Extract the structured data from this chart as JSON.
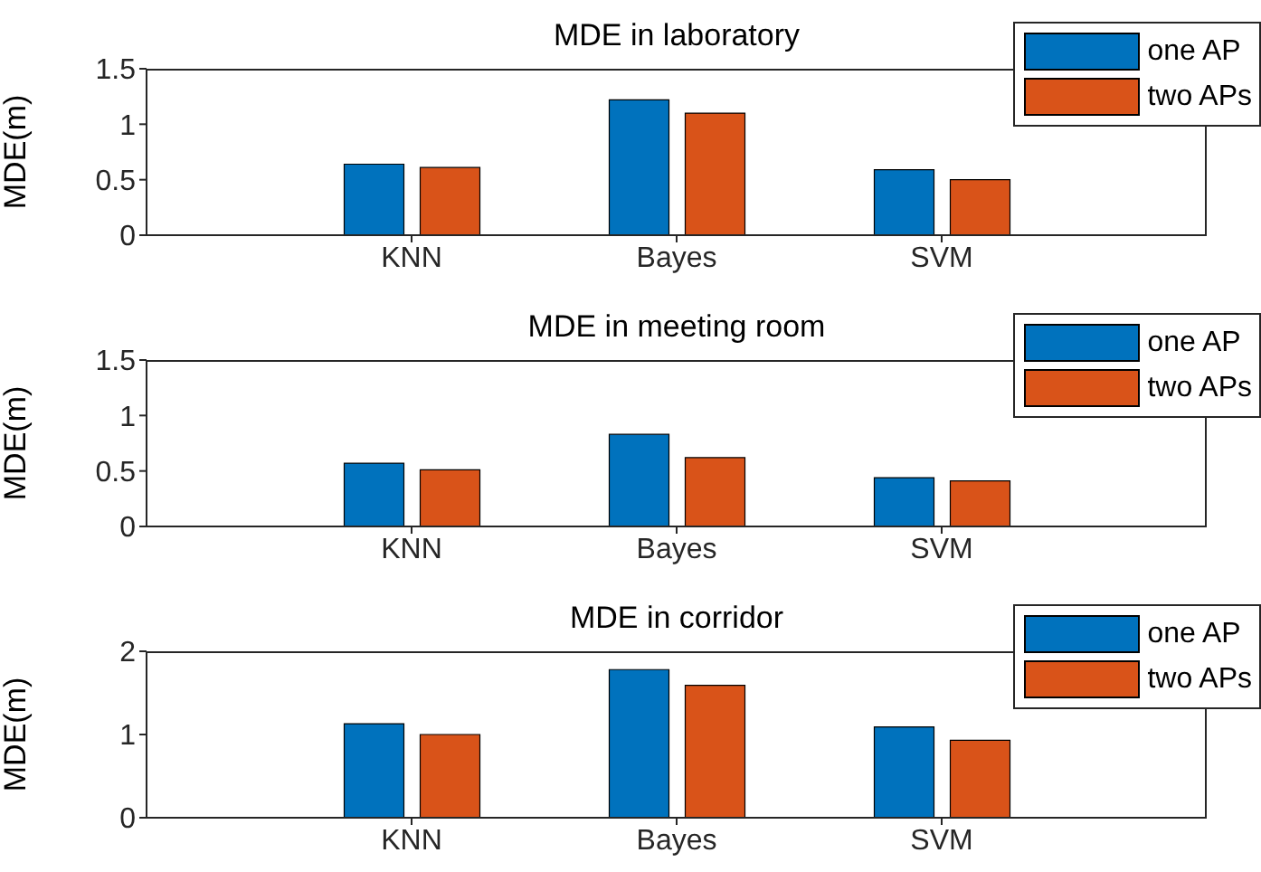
{
  "chart_data": [
    {
      "type": "bar",
      "title": "MDE in laboratory",
      "ylabel": "MDE(m)",
      "categories": [
        "KNN",
        "Bayes",
        "SVM"
      ],
      "ylim": [
        0,
        1.5
      ],
      "yticks": [
        0,
        0.5,
        1,
        1.5
      ],
      "legend": "right",
      "grid": false,
      "series": [
        {
          "name": "one AP",
          "color": "#0072bd",
          "values": [
            0.64,
            1.22,
            0.59
          ]
        },
        {
          "name": "two APs",
          "color": "#d95319",
          "values": [
            0.61,
            1.1,
            0.5
          ]
        }
      ]
    },
    {
      "type": "bar",
      "title": "MDE in meeting room",
      "ylabel": "MDE(m)",
      "categories": [
        "KNN",
        "Bayes",
        "SVM"
      ],
      "ylim": [
        0,
        1.5
      ],
      "yticks": [
        0,
        0.5,
        1,
        1.5
      ],
      "legend": "right",
      "grid": false,
      "series": [
        {
          "name": "one AP",
          "color": "#0072bd",
          "values": [
            0.57,
            0.83,
            0.44
          ]
        },
        {
          "name": "two APs",
          "color": "#d95319",
          "values": [
            0.51,
            0.62,
            0.41
          ]
        }
      ]
    },
    {
      "type": "bar",
      "title": "MDE in corridor",
      "ylabel": "MDE(m)",
      "categories": [
        "KNN",
        "Bayes",
        "SVM"
      ],
      "ylim": [
        0,
        2
      ],
      "yticks": [
        0,
        1,
        2
      ],
      "legend": "right",
      "grid": false,
      "series": [
        {
          "name": "one AP",
          "color": "#0072bd",
          "values": [
            1.13,
            1.78,
            1.09
          ]
        },
        {
          "name": "two APs",
          "color": "#d95319",
          "values": [
            1.0,
            1.59,
            0.93
          ]
        }
      ]
    }
  ]
}
